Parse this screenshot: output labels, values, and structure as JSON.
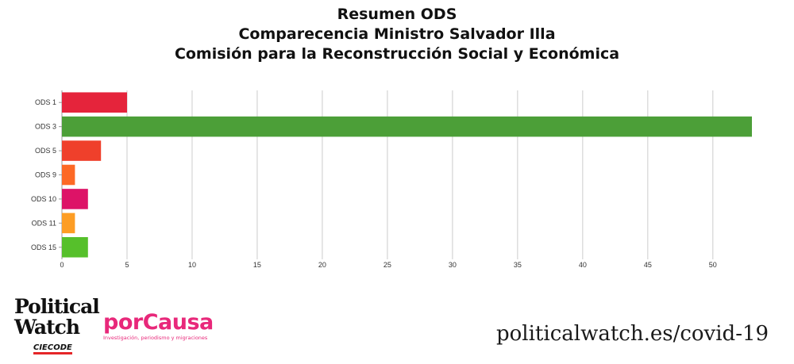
{
  "chart_data": {
    "type": "bar",
    "orientation": "horizontal",
    "title_lines": [
      "Resumen ODS",
      "Comparecencia Ministro Salvador Illa",
      "Comisión para la Reconstrucción Social y Económica"
    ],
    "categories": [
      "ODS 1",
      "ODS 3",
      "ODS 5",
      "ODS 9",
      "ODS 10",
      "ODS 11",
      "ODS 15"
    ],
    "values": [
      5,
      53,
      3,
      1,
      2,
      1,
      2
    ],
    "colors": [
      "#e5243b",
      "#4c9f38",
      "#ef402b",
      "#fd6925",
      "#dd1367",
      "#fd9d24",
      "#56c02b"
    ],
    "xlim": [
      0,
      53
    ],
    "xticks": [
      0,
      5,
      10,
      15,
      20,
      25,
      30,
      35,
      40,
      45,
      50
    ],
    "grid": true
  },
  "footer": {
    "political_watch": {
      "line1": "Political",
      "line2": "Watch",
      "line3": "CIECODE"
    },
    "porcausa": {
      "name": "porCausa",
      "tagline": "Investigación, periodismo y migraciones"
    },
    "url": "politicalwatch.es/covid-19"
  }
}
